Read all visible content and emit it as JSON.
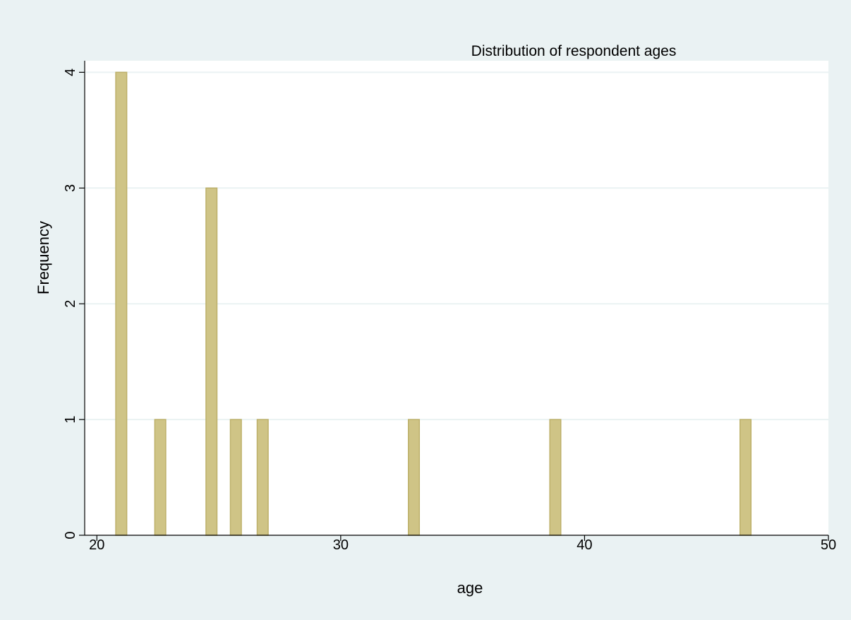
{
  "chart_data": {
    "type": "bar",
    "title": "Distribution of respondent ages",
    "xlabel": "age",
    "ylabel": "Frequency",
    "xlim": [
      19.5,
      50
    ],
    "ylim": [
      0,
      4.1
    ],
    "x_ticks": [
      {
        "value": 20,
        "label": "20"
      },
      {
        "value": 30,
        "label": "30"
      },
      {
        "value": 40,
        "label": "40"
      },
      {
        "value": 50,
        "label": "50"
      }
    ],
    "y_ticks": [
      {
        "value": 0,
        "label": "0"
      },
      {
        "value": 1,
        "label": "1"
      },
      {
        "value": 2,
        "label": "2"
      },
      {
        "value": 3,
        "label": "3"
      },
      {
        "value": 4,
        "label": "4"
      }
    ],
    "bar_width": 0.45,
    "grid": true,
    "legend": "none",
    "x": [
      21,
      22.6,
      24.7,
      25.7,
      26.8,
      33,
      38.8,
      46.6
    ],
    "values": [
      4,
      1,
      3,
      1,
      1,
      1,
      1,
      1
    ]
  },
  "colors": {
    "bar_fill": "#cfc486",
    "bar_stroke": "#bdb06a",
    "background": "#eaf2f3",
    "plot_background": "#ffffff"
  }
}
